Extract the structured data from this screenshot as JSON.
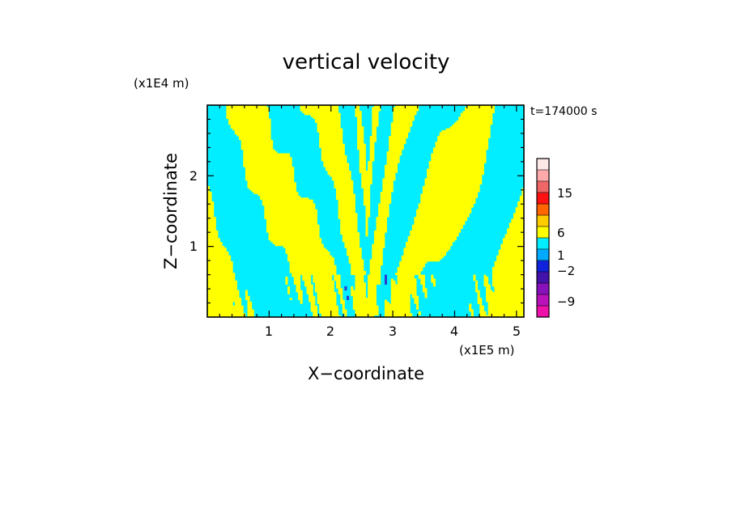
{
  "chart_data": {
    "type": "heatmap",
    "title": "vertical velocity",
    "xlabel": "X−coordinate",
    "ylabel": "Z−coordinate",
    "x_scale_label": "(x1E5 m)",
    "y_scale_label": "(x1E4 m)",
    "time_label": "t=174000 s",
    "xlim": [
      0,
      5.12
    ],
    "ylim": [
      0,
      3.0
    ],
    "x_ticks": [
      1,
      2,
      3,
      4,
      5
    ],
    "y_ticks": [
      1,
      2
    ],
    "x_tick_labels": [
      "1",
      "2",
      "3",
      "4",
      "5"
    ],
    "y_tick_labels": [
      "1",
      "2"
    ],
    "field_colors": {
      "positive": "#ffff00",
      "negative": "#00eeff",
      "strong_negative": "#2a3ad0"
    },
    "colorbar": {
      "levels": [
        -12,
        -9,
        -6,
        -4,
        -2,
        -1,
        0,
        1,
        2,
        4,
        6,
        10,
        15,
        20,
        25
      ],
      "colors": [
        "#ee11aa",
        "#bb11bb",
        "#8811bb",
        "#4411aa",
        "#1122dd",
        "#00aaff",
        "#00eeff",
        "#ffff00",
        "#ffcc00",
        "#ff6600",
        "#ff1111",
        "#ee6666",
        "#ffaaaa",
        "#ffe8e8"
      ],
      "tick_labels": [
        "15",
        "6",
        "1",
        "−2",
        "−9"
      ],
      "tick_values": [
        15,
        6,
        1,
        -2,
        -9
      ]
    }
  }
}
